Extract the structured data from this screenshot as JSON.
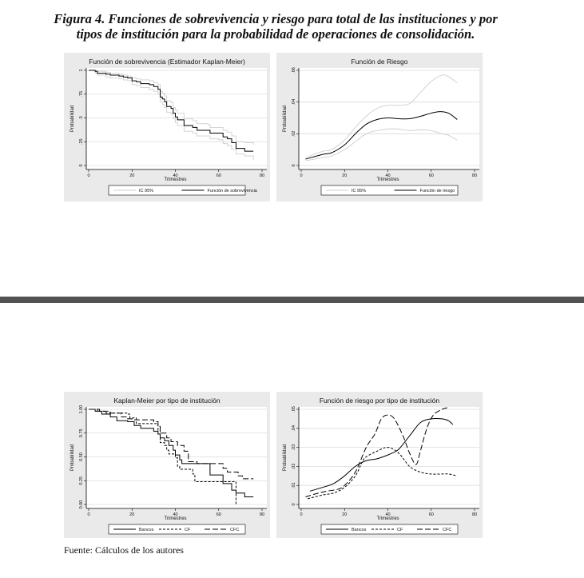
{
  "caption": {
    "line1": "Figura 4. Funciones de sobrevivencia y riesgo para total de las instituciones y por",
    "line2": "tipos de institución para la probabilidad de operaciones de consolidación."
  },
  "source": "Fuente: Cálculos de los autores",
  "colors": {
    "panel_bg": "#eaeaea",
    "plot_bg": "#ffffff",
    "grid": "#dcdcdc",
    "ci": "#cfcfcf",
    "line": "#000000",
    "divider": "#525252"
  },
  "chart_data": [
    {
      "type": "line",
      "step": true,
      "title": "Función de sobrevivencia (Estimador Kaplan-Meier)",
      "xlabel": "Trimestres",
      "ylabel": "Probabilidad",
      "xlim": [
        0,
        80
      ],
      "ylim": [
        0,
        1
      ],
      "xticks": [
        "0",
        "20",
        "40",
        "60",
        "80"
      ],
      "xtick_values": [
        0,
        20,
        40,
        60,
        80
      ],
      "yticks": [
        "0",
        ".25",
        ".5",
        ".75",
        "1"
      ],
      "ytick_values": [
        0,
        0.25,
        0.5,
        0.75,
        1
      ],
      "grid": true,
      "legend_position": "bottom",
      "series": [
        {
          "name": "IC 95%",
          "style": "ci",
          "x": [
            0,
            3,
            4,
            8,
            10,
            14,
            16,
            18,
            20,
            22,
            24,
            28,
            30,
            32,
            33,
            34,
            35,
            36,
            38,
            39,
            40,
            41,
            44,
            48,
            50,
            55,
            56,
            60,
            62,
            64,
            66,
            68,
            72,
            76
          ],
          "y": [
            1,
            0.97,
            0.95,
            0.93,
            0.92,
            0.91,
            0.9,
            0.89,
            0.85,
            0.84,
            0.82,
            0.8,
            0.78,
            0.75,
            0.67,
            0.64,
            0.61,
            0.56,
            0.54,
            0.49,
            0.45,
            0.42,
            0.36,
            0.34,
            0.31,
            0.31,
            0.28,
            0.27,
            0.23,
            0.21,
            0.17,
            0.12,
            0.1,
            0.06
          ]
        },
        {
          "name": "IC 95%",
          "style": "ci",
          "legend": false,
          "x": [
            0,
            3,
            4,
            8,
            10,
            14,
            16,
            18,
            20,
            22,
            24,
            28,
            30,
            32,
            33,
            34,
            35,
            36,
            38,
            39,
            40,
            41,
            44,
            48,
            50,
            55,
            56,
            60,
            62,
            64,
            66,
            68,
            72,
            76
          ],
          "y": [
            1,
            1,
            0.99,
            0.98,
            0.97,
            0.96,
            0.95,
            0.94,
            0.92,
            0.91,
            0.9,
            0.89,
            0.87,
            0.85,
            0.78,
            0.76,
            0.73,
            0.68,
            0.66,
            0.61,
            0.58,
            0.55,
            0.49,
            0.47,
            0.44,
            0.43,
            0.4,
            0.4,
            0.37,
            0.35,
            0.31,
            0.25,
            0.24,
            0.22
          ]
        },
        {
          "name": "Función de sobrevivencia",
          "style": "solid",
          "x": [
            0,
            3,
            4,
            8,
            10,
            14,
            16,
            18,
            20,
            22,
            24,
            28,
            30,
            32,
            33,
            34,
            35,
            36,
            38,
            39,
            40,
            41,
            44,
            48,
            50,
            55,
            56,
            60,
            62,
            64,
            66,
            68,
            72,
            76
          ],
          "y": [
            1,
            0.99,
            0.97,
            0.96,
            0.95,
            0.94,
            0.93,
            0.92,
            0.89,
            0.88,
            0.86,
            0.85,
            0.83,
            0.8,
            0.72,
            0.7,
            0.67,
            0.62,
            0.6,
            0.55,
            0.51,
            0.48,
            0.42,
            0.4,
            0.37,
            0.37,
            0.34,
            0.34,
            0.3,
            0.28,
            0.24,
            0.18,
            0.15,
            0.15
          ]
        }
      ]
    },
    {
      "type": "line",
      "step": false,
      "title": "Función de Riesgo",
      "xlabel": "Trimestres",
      "ylabel": "Probabilidad",
      "xlim": [
        0,
        80
      ],
      "ylim": [
        0,
        0.06
      ],
      "xticks": [
        "0",
        "20",
        "40",
        "60",
        "80"
      ],
      "xtick_values": [
        0,
        20,
        40,
        60,
        80
      ],
      "yticks": [
        "0",
        ".02",
        ".04",
        ".06"
      ],
      "ytick_values": [
        0,
        0.02,
        0.04,
        0.06
      ],
      "grid": true,
      "legend_position": "bottom",
      "series": [
        {
          "name": "IC 95%",
          "style": "ci",
          "x": [
            2,
            10,
            14,
            20,
            25,
            30,
            35,
            40,
            45,
            50,
            55,
            60,
            65,
            68,
            72
          ],
          "y": [
            0.005,
            0.009,
            0.01,
            0.016,
            0.024,
            0.031,
            0.036,
            0.038,
            0.038,
            0.039,
            0.046,
            0.053,
            0.057,
            0.056,
            0.052
          ]
        },
        {
          "name": "IC 95%",
          "style": "ci",
          "legend": false,
          "x": [
            2,
            10,
            14,
            20,
            25,
            30,
            35,
            40,
            45,
            50,
            55,
            60,
            65,
            68,
            72
          ],
          "y": [
            0.003,
            0.005,
            0.006,
            0.01,
            0.015,
            0.02,
            0.022,
            0.023,
            0.023,
            0.022,
            0.0225,
            0.022,
            0.02,
            0.019,
            0.016
          ]
        },
        {
          "name": "Función de riesgo",
          "style": "solid",
          "x": [
            2,
            10,
            14,
            20,
            25,
            30,
            35,
            40,
            45,
            50,
            55,
            60,
            64,
            68,
            72
          ],
          "y": [
            0.004,
            0.007,
            0.008,
            0.013,
            0.02,
            0.026,
            0.029,
            0.03,
            0.0295,
            0.0295,
            0.031,
            0.033,
            0.034,
            0.033,
            0.029
          ]
        }
      ]
    },
    {
      "type": "line",
      "step": true,
      "title": "Kaplan-Meier por tipo de institución",
      "xlabel": "Trimestres",
      "ylabel": "Probabilidad",
      "xlim": [
        0,
        80
      ],
      "ylim": [
        0,
        1
      ],
      "xticks": [
        "0",
        "20",
        "40",
        "60",
        "80"
      ],
      "xtick_values": [
        0,
        20,
        40,
        60,
        80
      ],
      "yticks": [
        "0.00",
        "0.25",
        "0.50",
        "0.75",
        "1.00"
      ],
      "ytick_values": [
        0,
        0.25,
        0.5,
        0.75,
        1
      ],
      "grid": true,
      "legend_position": "bottom",
      "series": [
        {
          "name": "Bancos",
          "style": "solid",
          "x": [
            0,
            3,
            6,
            10,
            13,
            18,
            21,
            24,
            30,
            32,
            33,
            35,
            37,
            39,
            40,
            42,
            43,
            55,
            56,
            62,
            66,
            68,
            72,
            76
          ],
          "y": [
            1,
            0.98,
            0.95,
            0.92,
            0.88,
            0.87,
            0.83,
            0.8,
            0.77,
            0.74,
            0.7,
            0.67,
            0.62,
            0.57,
            0.52,
            0.47,
            0.43,
            0.43,
            0.31,
            0.22,
            0.15,
            0.12,
            0.08,
            0.08
          ]
        },
        {
          "name": "CF",
          "style": "short-dash",
          "x": [
            0,
            4,
            8,
            18,
            19,
            22,
            30,
            32,
            33,
            35,
            36,
            37,
            40,
            41,
            42,
            47,
            48,
            49,
            68,
            68
          ],
          "y": [
            1,
            0.98,
            0.96,
            0.95,
            0.91,
            0.85,
            0.85,
            0.78,
            0.65,
            0.62,
            0.57,
            0.53,
            0.49,
            0.4,
            0.37,
            0.37,
            0.32,
            0.24,
            0.24,
            0
          ]
        },
        {
          "name": "CFC",
          "style": "long-dash",
          "x": [
            0,
            5,
            10,
            15,
            18,
            20,
            30,
            32,
            33,
            36,
            38,
            41,
            44,
            46,
            50,
            62,
            64,
            69,
            71,
            76
          ],
          "y": [
            1,
            0.98,
            0.96,
            0.92,
            0.9,
            0.89,
            0.87,
            0.82,
            0.75,
            0.7,
            0.66,
            0.62,
            0.56,
            0.45,
            0.43,
            0.38,
            0.34,
            0.3,
            0.27,
            0.27
          ]
        }
      ]
    },
    {
      "type": "line",
      "step": false,
      "title": "Función de riesgo por tipo de institución",
      "xlabel": "Trimestres",
      "ylabel": "Probabilidad",
      "xlim": [
        0,
        80
      ],
      "ylim": [
        0,
        0.05
      ],
      "xticks": [
        "0",
        "20",
        "40",
        "60",
        "80"
      ],
      "xtick_values": [
        0,
        20,
        40,
        60,
        80
      ],
      "yticks": [
        "0",
        ".01",
        ".02",
        ".03",
        ".04",
        ".05"
      ],
      "ytick_values": [
        0,
        0.01,
        0.02,
        0.03,
        0.04,
        0.05
      ],
      "grid": true,
      "legend_position": "bottom",
      "series": [
        {
          "name": "Bancos",
          "style": "solid",
          "x": [
            4,
            10,
            15,
            20,
            25,
            30,
            35,
            40,
            42,
            45,
            50,
            55,
            60,
            65,
            68,
            70
          ],
          "y": [
            0.007,
            0.009,
            0.011,
            0.015,
            0.02,
            0.023,
            0.024,
            0.026,
            0.027,
            0.029,
            0.036,
            0.043,
            0.045,
            0.045,
            0.044,
            0.042
          ]
        },
        {
          "name": "CF",
          "style": "short-dash",
          "x": [
            3,
            10,
            15,
            20,
            25,
            28,
            30,
            35,
            40,
            45,
            50,
            55,
            60,
            65,
            68,
            72
          ],
          "y": [
            0.003,
            0.005,
            0.006,
            0.009,
            0.015,
            0.022,
            0.025,
            0.028,
            0.03,
            0.027,
            0.02,
            0.017,
            0.016,
            0.016,
            0.016,
            0.015
          ]
        },
        {
          "name": "CFC",
          "style": "long-dash",
          "x": [
            2,
            8,
            12,
            17,
            20,
            25,
            30,
            34,
            37,
            40,
            43,
            47,
            50,
            53,
            55,
            58,
            61,
            65,
            68
          ],
          "y": [
            0.004,
            0.006,
            0.007,
            0.008,
            0.01,
            0.017,
            0.03,
            0.037,
            0.045,
            0.047,
            0.045,
            0.036,
            0.027,
            0.021,
            0.028,
            0.04,
            0.047,
            0.05,
            0.051
          ]
        }
      ]
    }
  ]
}
